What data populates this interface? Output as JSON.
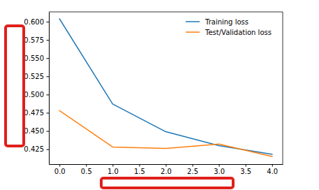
{
  "chart_data": {
    "type": "line",
    "x": [
      0,
      1,
      2,
      3,
      4
    ],
    "series": [
      {
        "name": "Training loss",
        "color": "#1f77b4",
        "values": [
          0.604,
          0.487,
          0.449,
          0.43,
          0.418
        ]
      },
      {
        "name": "Test/Validation loss",
        "color": "#ff7f0e",
        "values": [
          0.478,
          0.428,
          0.426,
          0.432,
          0.415
        ]
      }
    ],
    "xlim": [
      -0.2,
      4.2
    ],
    "xticks": [
      {
        "value": 0,
        "label": "0.0"
      },
      0.5,
      {
        "value": 1,
        "label": "1.0"
      },
      1.5,
      {
        "value": 2,
        "label": "2.0"
      },
      2.5,
      {
        "value": 3,
        "label": "3.0"
      },
      3.5,
      {
        "value": 4,
        "label": "4.0"
      }
    ],
    "ylim": [
      0.4045,
      0.6135
    ],
    "yticks": [
      0.425,
      {
        "value": 0.45,
        "label": "0.450"
      },
      0.475,
      {
        "value": 0.5,
        "label": "0.500"
      },
      0.525,
      {
        "value": 0.55,
        "label": "0.550"
      },
      0.575,
      {
        "value": 0.6,
        "label": "0.600"
      }
    ],
    "legend": "upper right",
    "grid": false
  }
}
